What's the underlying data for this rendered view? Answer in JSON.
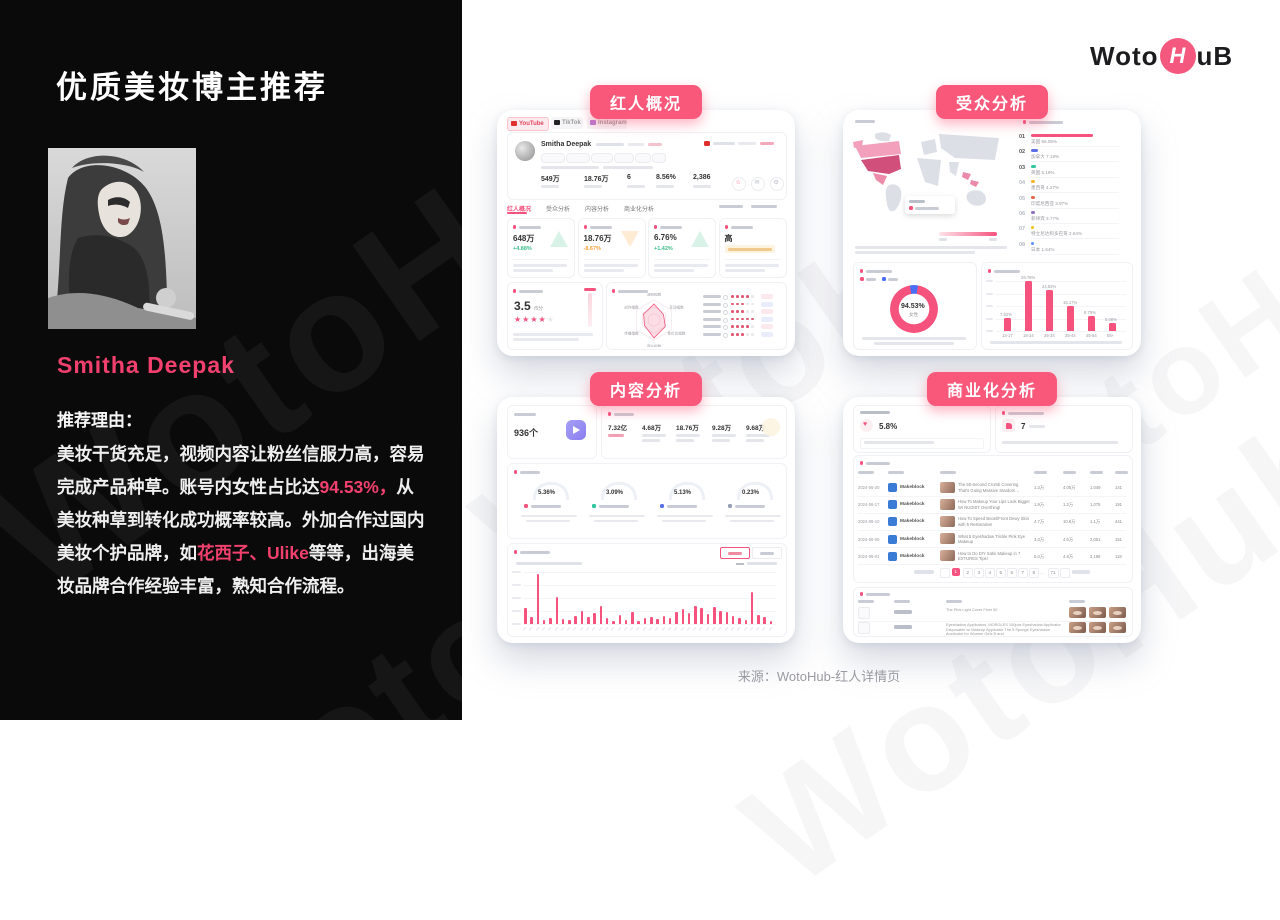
{
  "slide": {
    "title": "优质美妆博主推荐",
    "blogger_name": "Smitha Deepak",
    "reason_label": "推荐理由：",
    "reason_parts": [
      {
        "text": "美妆干货充足，视频内容让粉丝信服力高，容易完成产品种草。账号内女性占比达",
        "highlight": false
      },
      {
        "text": "94.53%，",
        "highlight": true
      },
      {
        "text": "从美妆种草到转化成功概率较高。外加合作过国内美妆个护品牌，如",
        "highlight": false
      },
      {
        "text": "花西子、Ulike",
        "highlight": true
      },
      {
        "text": "等等，出海美妆品牌合作经验丰富，熟知合作流程。",
        "highlight": false
      }
    ],
    "source": "来源：WotoHub-红人详情页",
    "watermark": "WotoHub"
  },
  "logo": {
    "part1": "Woto",
    "icon_letter": "H",
    "part2": "uB"
  },
  "colors": {
    "accent": "#F9587B",
    "pink": "#F5537E",
    "green": "#3DBE8B",
    "orange": "#F7A23B",
    "blue": "#4A6CF7",
    "purple": "#8A7DF0"
  },
  "overview": {
    "badge": "红人概况",
    "platform_tabs": [
      "YouTube",
      "TikTok",
      "Instagram"
    ],
    "profile_name": "Smitha Deepak",
    "header_stats": [
      {
        "value": "549万"
      },
      {
        "value": "18.76万"
      },
      {
        "value": "6"
      },
      {
        "value": "8.56%"
      },
      {
        "value": "2,386"
      }
    ],
    "nav_tabs": [
      "红人概况",
      "受众分析",
      "内容分析",
      "商业化分析"
    ],
    "metric_boxes": [
      {
        "value": "648万",
        "delta": "+4.88%",
        "trend": "up"
      },
      {
        "value": "18.76万",
        "delta": "-8.67%",
        "trend": "down"
      },
      {
        "value": "6.76%",
        "delta": "+1.42%",
        "trend": "up"
      },
      {
        "value": "高",
        "delta": "",
        "trend": "flat"
      }
    ],
    "rating": {
      "score": "3.5",
      "unit": "/5分",
      "stars": 3.5
    },
    "radar": {
      "axes": [
        "涨粉指数",
        "互动指数",
        "性价比指数",
        "商业指数",
        "传播指数",
        "创作指数"
      ],
      "values": [
        0.8,
        0.55,
        0.65,
        0.9,
        0.55,
        0.6
      ],
      "legend_dots": [
        4,
        3,
        3,
        5,
        4,
        3
      ]
    }
  },
  "audience": {
    "badge": "受众分析",
    "regions": [
      {
        "rank": "01",
        "label": "美国 66.05%",
        "pct": 66.05,
        "color": "#F5537E"
      },
      {
        "rank": "02",
        "label": "加拿大 7.19%",
        "pct": 7.19,
        "color": "#5B6FE8"
      },
      {
        "rank": "03",
        "label": "英国 5.19%",
        "pct": 5.19,
        "color": "#2FC6A0"
      },
      {
        "rank": "04",
        "label": "墨西哥 4.27%",
        "pct": 4.27,
        "color": "#F7B52C"
      },
      {
        "rank": "05",
        "label": "印度尼西亚 3.97%",
        "pct": 3.97,
        "color": "#E8684A"
      },
      {
        "rank": "06",
        "label": "菲律宾 3.77%",
        "pct": 3.77,
        "color": "#9270CA"
      },
      {
        "rank": "07",
        "label": "特立尼达和多巴哥 2.64%",
        "pct": 2.64,
        "color": "#F6BD16"
      },
      {
        "rank": "08",
        "label": "日本 1.64%",
        "pct": 1.64,
        "color": "#5B8FF9"
      }
    ],
    "gender": {
      "value": "94.53%",
      "label": "女性",
      "female": 94.53,
      "male": 5.47
    },
    "age": {
      "categories": [
        "13-17",
        "18-24",
        "25-34",
        "35-44",
        "45-54",
        "55+"
      ],
      "values": [
        7.52,
        29.76,
        24.83,
        15.17,
        8.79,
        5.08
      ],
      "labels": [
        "7.52%",
        "29.76%",
        "24.83%",
        "15.17%",
        "8.79%",
        "5.08%"
      ]
    }
  },
  "content": {
    "badge": "内容分析",
    "video_count": "936个",
    "view_stats": [
      "7.32亿",
      "4.68万",
      "18.76万",
      "9.28万",
      "9.68万"
    ],
    "gauges": [
      {
        "value": "5.36%",
        "color": "#F5537E"
      },
      {
        "value": "3.09%",
        "color": "#2FC6A0"
      },
      {
        "value": "5.13%",
        "color": "#5B6FE8"
      },
      {
        "value": "0.23%",
        "color": "#95A0B5"
      }
    ],
    "recent_bars": [
      30,
      14,
      96,
      8,
      12,
      52,
      10,
      8,
      16,
      26,
      14,
      22,
      34,
      12,
      6,
      18,
      8,
      24,
      6,
      12,
      14,
      10,
      16,
      12,
      24,
      28,
      22,
      34,
      30,
      20,
      32,
      26,
      24,
      16,
      12,
      8,
      62,
      18,
      14,
      6
    ]
  },
  "commerce": {
    "badge": "商业化分析",
    "promo_rate": "5.8%",
    "brand_count": "7",
    "coop_rows": [
      {
        "date": "2024-06-20",
        "brand": "Makeblock",
        "title": "The 60-Second Crumb Covering That's Going Massive Stardom…",
        "nums": [
          "1.3万",
          "4.05万",
          "1,049",
          "141"
        ]
      },
      {
        "date": "2024-06-17",
        "brand": "Makeblock",
        "title": "How To Makeup Your Lips Look Bigger W/ NUDIST Overthing!",
        "nums": [
          "1.9万",
          "1.2万",
          "1,075",
          "191"
        ]
      },
      {
        "date": "2024-06-10",
        "brand": "Makeblock",
        "title": "How To Speed Boost/Front Dewy Skin with 5 Restorative!",
        "nums": [
          "4.7万",
          "10.6万",
          "1.1万",
          "441"
        ]
      },
      {
        "date": "2024-06-05",
        "brand": "Makeblock",
        "title": "What 5 Eyeshadow Trickle Pink Eye Makeup",
        "nums": [
          "3.3万",
          "4.6万",
          "2,051",
          "151"
        ]
      },
      {
        "date": "2024-06-01",
        "brand": "Makeblock",
        "title": "How to Do DIY Satin Makeup in 7 EXTURES Tips!",
        "nums": [
          "5.0万",
          "4.8万",
          "2,186",
          "118"
        ]
      }
    ],
    "pagination": {
      "pages": [
        "1",
        "2",
        "3",
        "4",
        "5",
        "6",
        "7",
        "8"
      ],
      "ellipsis": "…",
      "last": "71"
    },
    "products": [
      {
        "title": "The Plus Light Cover Fixer 50"
      },
      {
        "title": "Eyeshadow Applicators, MORGLES 100pcs Eyeshadow Applicator Disposable w/ Makeup Applicator The 5 Sponge Eyeshadow Applicator for Women Girls B and"
      }
    ]
  }
}
